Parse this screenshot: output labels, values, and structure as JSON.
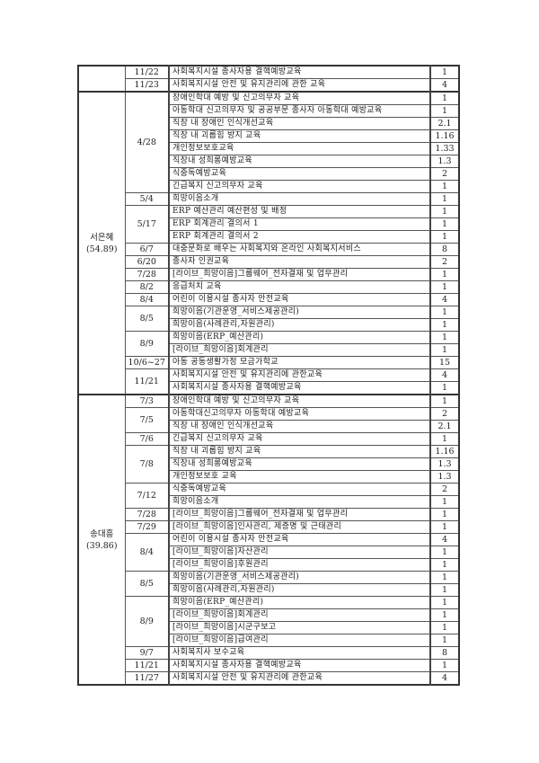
{
  "table": {
    "sections": [
      {
        "name": "",
        "total": "",
        "groups": [
          {
            "date": "11/22",
            "items": [
              [
                "사회복지시설 종사자용 결핵예방교육",
                "1"
              ]
            ]
          },
          {
            "date": "11/23",
            "items": [
              [
                "사회복지시설 안전 및 유지관리에 관한 교육",
                "4"
              ]
            ]
          }
        ]
      },
      {
        "name": "서은혜",
        "total": "(54.89)",
        "groups": [
          {
            "date": "4/28",
            "items": [
              [
                "장애인학대 예방 및 신고의무자 교육",
                "1"
              ],
              [
                "아동학대 신고의무자 및 공공부문 종사자 아동학대 예방교육",
                "1"
              ],
              [
                "직장 내 장애인 인식개선교육",
                "2.1"
              ],
              [
                "직장 내 괴롭힘 방지 교육",
                "1.16"
              ],
              [
                "개인정보보호교육",
                "1.33"
              ],
              [
                "직장내 성희롱예방교육",
                "1.3"
              ],
              [
                "식중독예방교육",
                "2"
              ],
              [
                "긴급복지 신고의무자 교육",
                "1"
              ]
            ]
          },
          {
            "date": "5/4",
            "items": [
              [
                "희망이음소개",
                "1"
              ]
            ]
          },
          {
            "date": "5/17",
            "items": [
              [
                "ERP 예산관리 예산편성 및 배정",
                "1"
              ],
              [
                "ERP 회계관리 결의서 1",
                "1"
              ],
              [
                "ERP 회계관리 결의서 2",
                "1"
              ]
            ]
          },
          {
            "date": "6/7",
            "items": [
              [
                "대중문화로 배우는 사회복지와 온라인 사회복지서비스",
                "8"
              ]
            ]
          },
          {
            "date": "6/20",
            "items": [
              [
                "종사자 인권교육",
                "2"
              ]
            ]
          },
          {
            "date": "7/28",
            "items": [
              [
                "[라이브_희망이음]그룹웨어_전자결재 및 업무관리",
                "1"
              ]
            ]
          },
          {
            "date": "8/2",
            "items": [
              [
                "응급처치 교육",
                "1"
              ]
            ]
          },
          {
            "date": "8/4",
            "items": [
              [
                "어린이 이용시설 종사자 안전교육",
                "4"
              ]
            ]
          },
          {
            "date": "8/5",
            "items": [
              [
                "희망이음(기관운영_서비스제공관리)",
                "1"
              ],
              [
                "희망이음(사례관리,자원관리)",
                "1"
              ]
            ]
          },
          {
            "date": "8/9",
            "items": [
              [
                "희망이음(ERP_예산관리)",
                "1"
              ],
              [
                "[라이브_희망이음]회계관리",
                "1"
              ]
            ]
          },
          {
            "date": "10/6~27",
            "items": [
              [
                "아동 공동생활가정 모금가학교",
                "15"
              ]
            ]
          },
          {
            "date": "11/21",
            "items": [
              [
                "사회복지시설 안전 및 유지관리에 관한교육",
                "4"
              ],
              [
                "사회복지시설 종사자용 결핵예방교육",
                "1"
              ]
            ]
          }
        ]
      },
      {
        "name": "송대흥",
        "total": "(39.86)",
        "groups": [
          {
            "date": "7/3",
            "items": [
              [
                "장애인학대 예방 및 신고의무자 교육",
                "1"
              ]
            ]
          },
          {
            "date": "7/5",
            "items": [
              [
                "아동학대신고의무자 아동학대 예방교육",
                "2"
              ],
              [
                "직장 내 장애인 인식개선교육",
                "2.1"
              ]
            ]
          },
          {
            "date": "7/6",
            "items": [
              [
                "긴급복지 신고의무자 교육",
                "1"
              ]
            ]
          },
          {
            "date": "7/8",
            "items": [
              [
                "직장 내 괴롭힘 방지 교육",
                "1.16"
              ],
              [
                "직장내 성희롱예방교육",
                "1.3"
              ],
              [
                "개인정보보호 교육",
                "1.3"
              ]
            ]
          },
          {
            "date": "7/12",
            "items": [
              [
                "식중독예방교육",
                "2"
              ],
              [
                "희망이음소개",
                "1"
              ]
            ]
          },
          {
            "date": "7/28",
            "items": [
              [
                "[라이브_희망이음]그룹웨어_전자결재 및 업무관리",
                "1"
              ]
            ]
          },
          {
            "date": "7/29",
            "items": [
              [
                "[라이브_희망이음]인사관리, 제증명 및 근태관리",
                "1"
              ]
            ]
          },
          {
            "date": "8/4",
            "items": [
              [
                "어린이 이용시설 종사자 안전교육",
                "4"
              ],
              [
                "[라이브_희망이음]자산관리",
                "1"
              ],
              [
                "[라이브_희망이음]후원관리",
                "1"
              ]
            ]
          },
          {
            "date": "8/5",
            "items": [
              [
                "희망이음(기관운영_서비스제공관리)",
                "1"
              ],
              [
                "희망이음(사례관리,자원관리)",
                "1"
              ]
            ]
          },
          {
            "date": "8/9",
            "items": [
              [
                "희망이음(ERP_예산관리)",
                "1"
              ],
              [
                "[라이브_희망이음]회계관리",
                "1"
              ],
              [
                "[라이브_희망이음]시군구보고",
                "1"
              ],
              [
                "[라이브_희망이음]급여관리",
                "1"
              ]
            ]
          },
          {
            "date": "9/7",
            "items": [
              [
                "사회복지사 보수교육",
                "8"
              ]
            ]
          },
          {
            "date": "11/21",
            "items": [
              [
                "사회복지시설 종사자용 결핵예방교육",
                "1"
              ]
            ]
          },
          {
            "date": "11/27",
            "items": [
              [
                "사회복지시설 안전 및 유지관리에 관한교육",
                "4"
              ]
            ]
          }
        ]
      }
    ]
  }
}
